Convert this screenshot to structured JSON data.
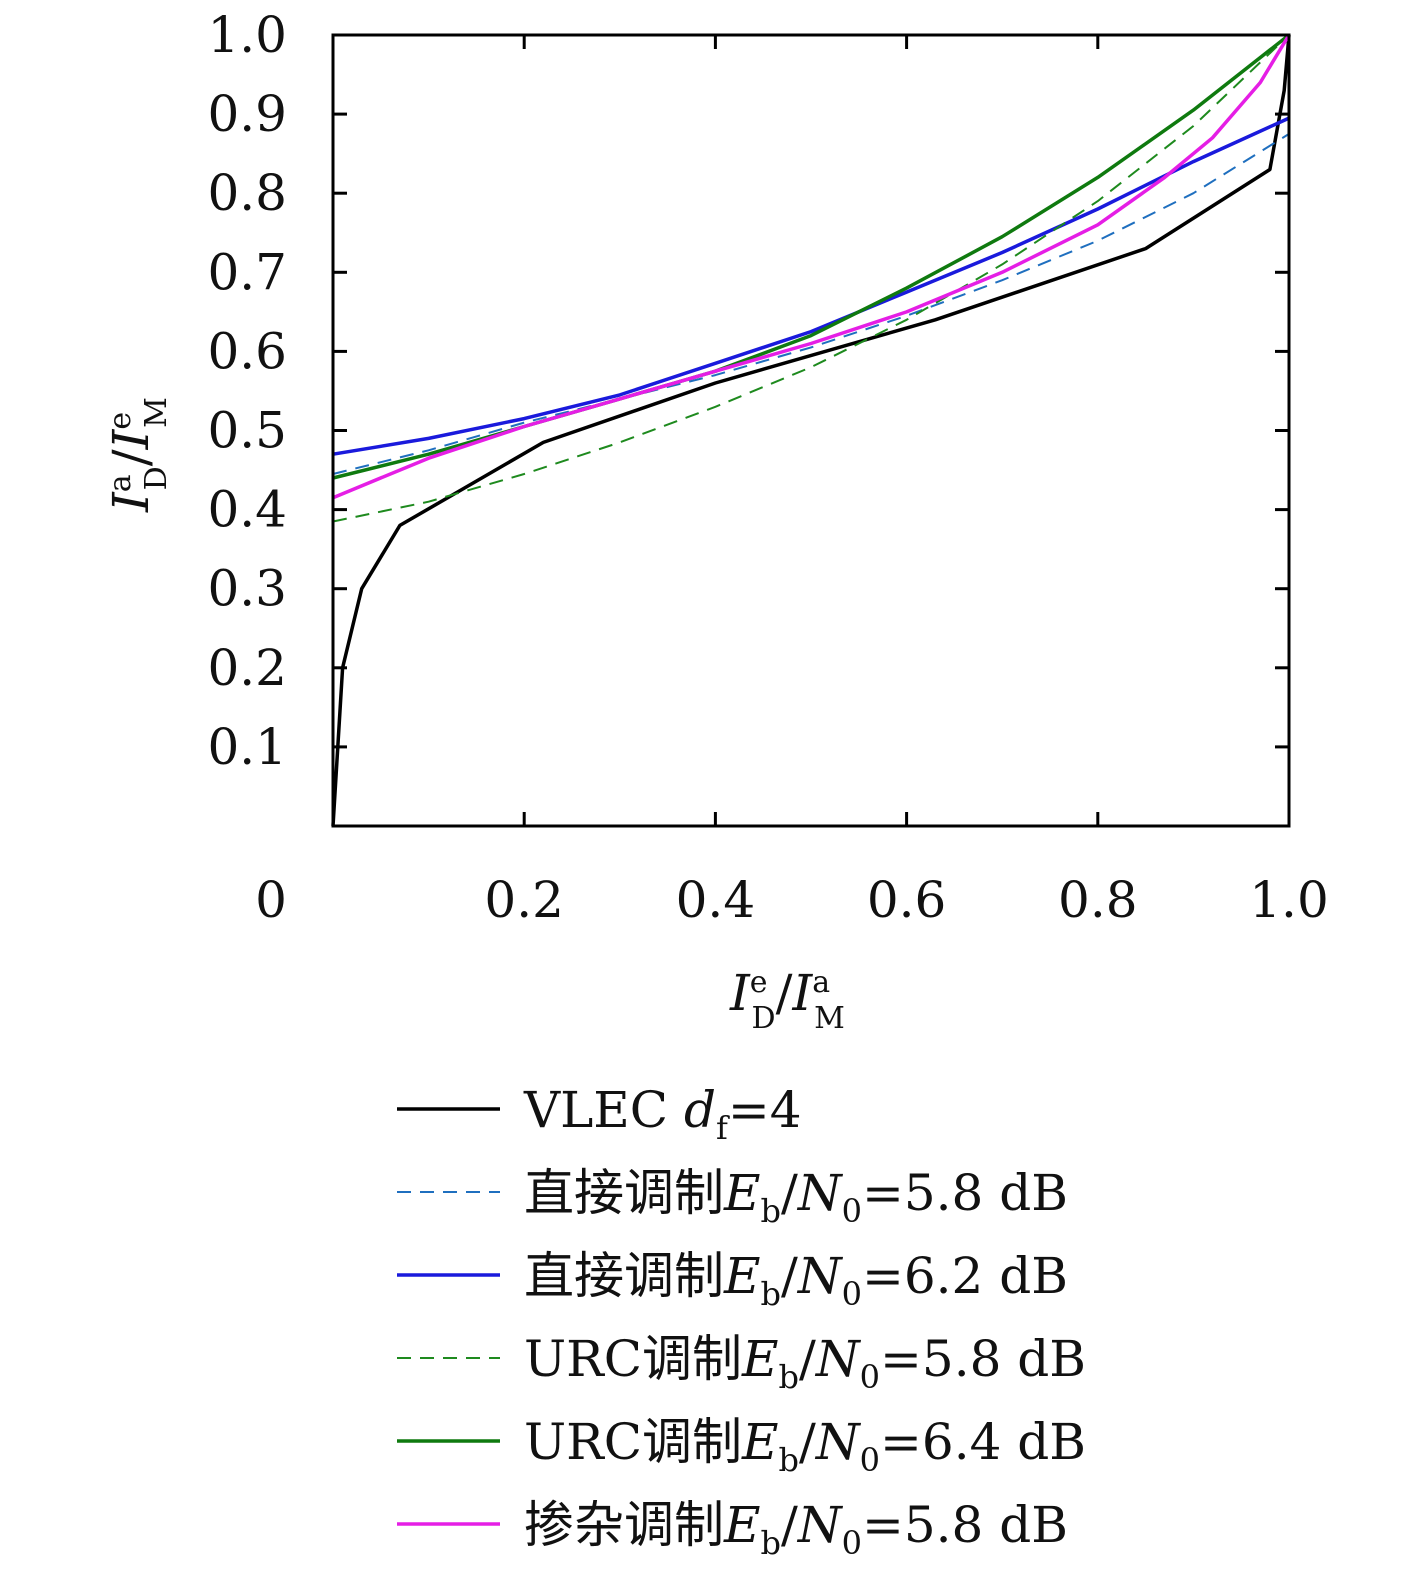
{
  "chart_data": {
    "type": "line",
    "xlabel": {
      "base1": "I",
      "sup1": "e",
      "sub1": "D",
      "slash": "/",
      "base2": "I",
      "sup2": "a",
      "sub2": "M"
    },
    "ylabel": {
      "base1": "I",
      "sup1": "a",
      "sub1": "D",
      "slash": "/",
      "base2": "I",
      "sup2": "e",
      "sub2": "M"
    },
    "xlim": [
      0,
      1.0
    ],
    "ylim": [
      0,
      1.0
    ],
    "x_ticks": [
      {
        "value": 0,
        "label": "0"
      },
      {
        "value": 0.2,
        "label": "0.2"
      },
      {
        "value": 0.4,
        "label": "0.4"
      },
      {
        "value": 0.6,
        "label": "0.6"
      },
      {
        "value": 0.8,
        "label": "0.8"
      },
      {
        "value": 1.0,
        "label": "1.0"
      }
    ],
    "y_ticks": [
      {
        "value": 0.1,
        "label": "0.1"
      },
      {
        "value": 0.2,
        "label": "0.2"
      },
      {
        "value": 0.3,
        "label": "0.3"
      },
      {
        "value": 0.4,
        "label": "0.4"
      },
      {
        "value": 0.5,
        "label": "0.5"
      },
      {
        "value": 0.6,
        "label": "0.6"
      },
      {
        "value": 0.7,
        "label": "0.7"
      },
      {
        "value": 0.8,
        "label": "0.8"
      },
      {
        "value": 0.9,
        "label": "0.9"
      },
      {
        "value": 1.0,
        "label": "1.0"
      }
    ],
    "grid": false,
    "legend_position": "below",
    "series": [
      {
        "name": "VLEC df=4",
        "label": {
          "pre": "VLEC ",
          "var": "d",
          "sub": "f",
          "post": "=4"
        },
        "color": "#000000",
        "dashed": false,
        "x": [
          0.0,
          0.01,
          0.03,
          0.07,
          0.22,
          0.4,
          0.63,
          0.85,
          0.98,
          0.995,
          1.0
        ],
        "y": [
          0.0,
          0.2,
          0.3,
          0.38,
          0.485,
          0.56,
          0.64,
          0.73,
          0.83,
          0.93,
          1.0
        ]
      },
      {
        "name": "直接调制Eb/N0=5.8 dB",
        "label": {
          "pre": "直接调制",
          "var": "E",
          "sub": "b",
          "mid": "/",
          "var2": "N",
          "sub2": "0",
          "post": "=5.8 dB"
        },
        "color": "#1f6fbf",
        "dashed": true,
        "x": [
          0.0,
          0.1,
          0.2,
          0.3,
          0.4,
          0.5,
          0.6,
          0.7,
          0.8,
          0.9,
          1.0
        ],
        "y": [
          0.445,
          0.475,
          0.51,
          0.54,
          0.57,
          0.605,
          0.645,
          0.69,
          0.74,
          0.8,
          0.875
        ]
      },
      {
        "name": "直接调制Eb/N0=6.2 dB",
        "label": {
          "pre": "直接调制",
          "var": "E",
          "sub": "b",
          "mid": "/",
          "var2": "N",
          "sub2": "0",
          "post": "=6.2 dB"
        },
        "color": "#1a1adc",
        "dashed": false,
        "x": [
          0.0,
          0.1,
          0.2,
          0.3,
          0.4,
          0.5,
          0.6,
          0.7,
          0.8,
          0.9,
          1.0
        ],
        "y": [
          0.47,
          0.49,
          0.515,
          0.545,
          0.585,
          0.625,
          0.675,
          0.725,
          0.78,
          0.84,
          0.895
        ]
      },
      {
        "name": "URC调制Eb/N0=5.8 dB",
        "label": {
          "pre": "URC调制",
          "var": "E",
          "sub": "b",
          "mid": "/",
          "var2": "N",
          "sub2": "0",
          "post": "=5.8 dB"
        },
        "color": "#1e8a1e",
        "dashed": true,
        "x": [
          0.0,
          0.1,
          0.2,
          0.3,
          0.4,
          0.5,
          0.6,
          0.7,
          0.8,
          0.9,
          1.0
        ],
        "y": [
          0.385,
          0.41,
          0.445,
          0.485,
          0.53,
          0.58,
          0.64,
          0.71,
          0.79,
          0.885,
          1.0
        ]
      },
      {
        "name": "URC调制Eb/N0=6.4 dB",
        "label": {
          "pre": "URC调制",
          "var": "E",
          "sub": "b",
          "mid": "/",
          "var2": "N",
          "sub2": "0",
          "post": "=6.4 dB"
        },
        "color": "#0f7a0f",
        "dashed": false,
        "x": [
          0.0,
          0.1,
          0.2,
          0.3,
          0.4,
          0.5,
          0.6,
          0.7,
          0.8,
          0.9,
          1.0
        ],
        "y": [
          0.44,
          0.47,
          0.505,
          0.54,
          0.575,
          0.62,
          0.68,
          0.745,
          0.82,
          0.905,
          1.0
        ]
      },
      {
        "name": "掺杂调制Eb/N0=5.8 dB",
        "label": {
          "pre": "掺杂调制",
          "var": "E",
          "sub": "b",
          "mid": "/",
          "var2": "N",
          "sub2": "0",
          "post": "=5.8 dB"
        },
        "color": "#e51ee5",
        "dashed": false,
        "x": [
          0.0,
          0.1,
          0.2,
          0.3,
          0.4,
          0.5,
          0.6,
          0.7,
          0.8,
          0.87,
          0.92,
          0.97,
          1.0
        ],
        "y": [
          0.415,
          0.465,
          0.505,
          0.54,
          0.575,
          0.61,
          0.65,
          0.7,
          0.76,
          0.82,
          0.87,
          0.94,
          1.0
        ]
      }
    ]
  }
}
